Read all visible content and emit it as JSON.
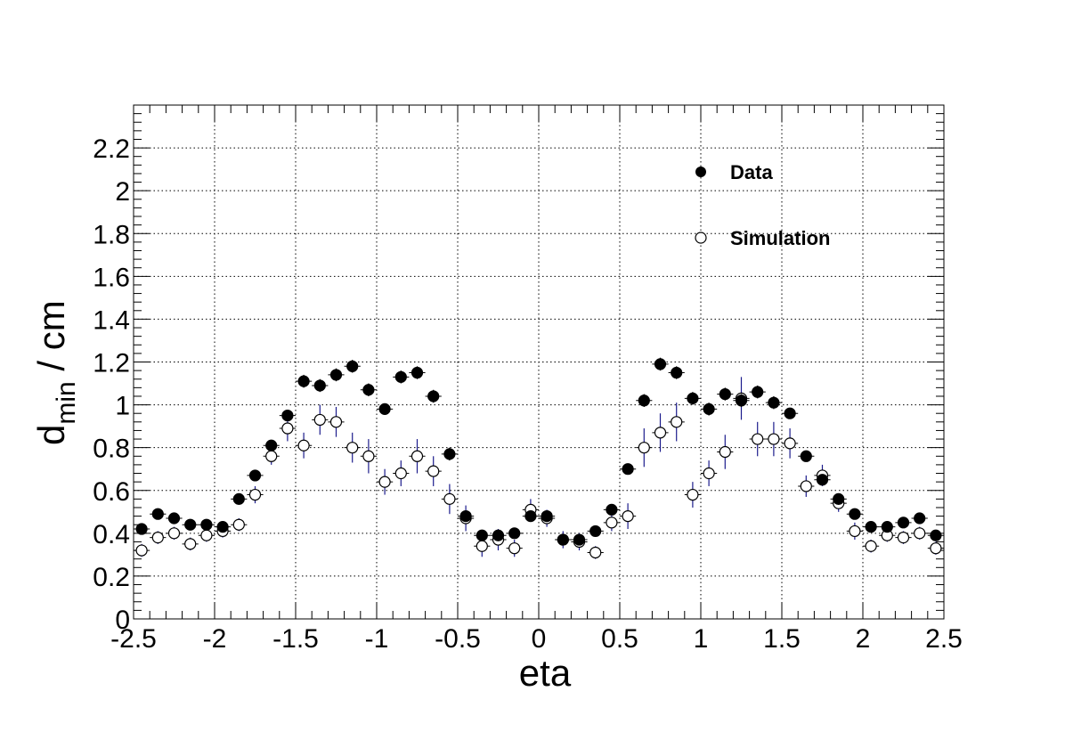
{
  "chart_data": {
    "type": "scatter",
    "xlabel": "eta",
    "ylabel": {
      "base": "d",
      "sub": "min",
      "rest": " / cm"
    },
    "xlim": [
      -2.5,
      2.5
    ],
    "ylim": [
      0,
      2.4
    ],
    "xticks": [
      -2.5,
      -2,
      -1.5,
      -1,
      -0.5,
      0,
      0.5,
      1,
      1.5,
      2,
      2.5
    ],
    "xtick_labels": [
      "-2.5",
      "-2",
      "-1.5",
      "-1",
      "-0.5",
      "0",
      "0.5",
      "1",
      "1.5",
      "2",
      "2.5"
    ],
    "yticks": [
      0,
      0.2,
      0.4,
      0.6,
      0.8,
      1,
      1.2,
      1.4,
      1.6,
      1.8,
      2,
      2.2
    ],
    "ytick_labels": [
      "0",
      "0.2",
      "0.4",
      "0.6",
      "0.8",
      "1",
      "1.2",
      "1.4",
      "1.6",
      "1.8",
      "2",
      "2.2"
    ],
    "grid": true,
    "legend_position": "top-right",
    "x": [
      -2.45,
      -2.35,
      -2.25,
      -2.15,
      -2.05,
      -1.95,
      -1.85,
      -1.75,
      -1.65,
      -1.55,
      -1.45,
      -1.35,
      -1.25,
      -1.15,
      -1.05,
      -0.95,
      -0.85,
      -0.75,
      -0.65,
      -0.55,
      -0.45,
      -0.35,
      -0.25,
      -0.15,
      -0.05,
      0.05,
      0.15,
      0.25,
      0.35,
      0.45,
      0.55,
      0.65,
      0.75,
      0.85,
      0.95,
      1.05,
      1.15,
      1.25,
      1.35,
      1.45,
      1.55,
      1.65,
      1.75,
      1.85,
      1.95,
      2.05,
      2.15,
      2.25,
      2.35,
      2.45
    ],
    "series": [
      {
        "name": "Data",
        "marker": "filled-circle",
        "color": "#000000",
        "values": [
          0.42,
          0.49,
          0.47,
          0.44,
          0.44,
          0.43,
          0.56,
          0.67,
          0.81,
          0.95,
          1.11,
          1.09,
          1.14,
          1.18,
          1.07,
          0.98,
          1.13,
          1.15,
          1.04,
          0.77,
          0.48,
          0.39,
          0.39,
          0.4,
          0.48,
          0.48,
          0.37,
          0.37,
          0.41,
          0.51,
          0.7,
          1.02,
          1.19,
          1.15,
          1.03,
          0.98,
          1.05,
          1.02,
          1.06,
          1.01,
          0.96,
          0.76,
          0.65,
          0.56,
          0.49,
          0.43,
          0.43,
          0.45,
          0.47,
          0.39
        ],
        "errors": [
          0.02,
          0.02,
          0.02,
          0.02,
          0.02,
          0.02,
          0.02,
          0.02,
          0.02,
          0.02,
          0.03,
          0.03,
          0.03,
          0.03,
          0.03,
          0.02,
          0.03,
          0.03,
          0.03,
          0.03,
          0.02,
          0.02,
          0.02,
          0.02,
          0.02,
          0.02,
          0.02,
          0.02,
          0.02,
          0.02,
          0.02,
          0.03,
          0.03,
          0.03,
          0.03,
          0.03,
          0.03,
          0.03,
          0.03,
          0.03,
          0.02,
          0.02,
          0.02,
          0.02,
          0.02,
          0.02,
          0.02,
          0.02,
          0.02,
          0.02
        ]
      },
      {
        "name": "Simulation",
        "marker": "open-circle",
        "color": "#000000",
        "error_color": "#1c1c8c",
        "values": [
          0.32,
          0.38,
          0.4,
          0.35,
          0.39,
          0.41,
          0.44,
          0.58,
          0.76,
          0.89,
          0.81,
          0.93,
          0.92,
          0.8,
          0.76,
          0.64,
          0.68,
          0.76,
          0.69,
          0.56,
          0.47,
          0.34,
          0.37,
          0.33,
          0.51,
          0.47,
          0.37,
          0.36,
          0.31,
          0.45,
          0.48,
          0.8,
          0.87,
          0.92,
          0.58,
          0.68,
          0.78,
          1.03,
          0.84,
          0.84,
          0.82,
          0.62,
          0.67,
          0.54,
          0.41,
          0.34,
          0.39,
          0.38,
          0.4,
          0.33
        ],
        "errors": [
          0.03,
          0.03,
          0.03,
          0.03,
          0.03,
          0.03,
          0.03,
          0.04,
          0.04,
          0.06,
          0.06,
          0.07,
          0.07,
          0.07,
          0.08,
          0.06,
          0.06,
          0.08,
          0.07,
          0.07,
          0.06,
          0.05,
          0.05,
          0.04,
          0.05,
          0.04,
          0.04,
          0.04,
          0.03,
          0.04,
          0.06,
          0.09,
          0.09,
          0.09,
          0.06,
          0.06,
          0.08,
          0.1,
          0.08,
          0.08,
          0.07,
          0.05,
          0.05,
          0.04,
          0.04,
          0.03,
          0.03,
          0.03,
          0.03,
          0.03
        ]
      }
    ]
  }
}
